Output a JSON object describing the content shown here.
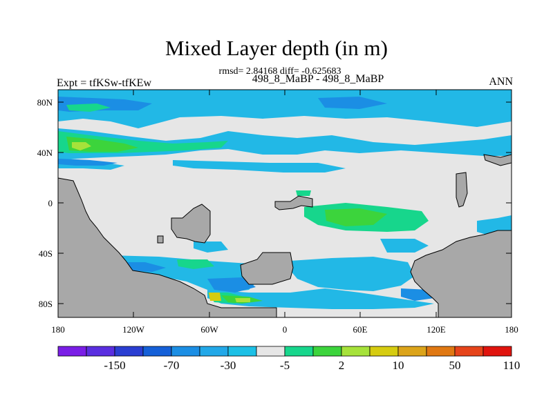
{
  "title": "Mixed Layer depth (in m)",
  "stats": "rmsd= 2.84168 diff= -0.625683",
  "experiment": "498_8_MaBP - 498_8_MaBP",
  "left_label": "Expt = tfKSw-tfKEw",
  "right_label": "ANN",
  "lat_ticks": [
    "80N",
    "40N",
    "0",
    "40S",
    "80S"
  ],
  "lon_ticks": [
    "180",
    "120W",
    "60W",
    "0",
    "60E",
    "120E",
    "180"
  ],
  "colorbar": {
    "colors": [
      "#7a1ee6",
      "#5a2ee0",
      "#2a3ed2",
      "#1560d8",
      "#1b8ee4",
      "#22a8e8",
      "#1cc0e6",
      "#e6e6e6",
      "#17d68c",
      "#3cd43c",
      "#a6e23a",
      "#d6cc10",
      "#dca41a",
      "#e07812",
      "#e6441a",
      "#e0140e"
    ],
    "labels": [
      "-150",
      "-70",
      "-30",
      "-5",
      "2",
      "10",
      "50",
      "110"
    ]
  },
  "map_colors": {
    "land": "#a8a8a8",
    "background": "#e6e6e6",
    "cyan": "#22b8e6",
    "blue": "#1b8ee4",
    "teal": "#17d68c",
    "green": "#3cd43c",
    "yellow_green": "#a6e23a",
    "yellow": "#d6cc10",
    "dark_blue": "#1560d8"
  }
}
